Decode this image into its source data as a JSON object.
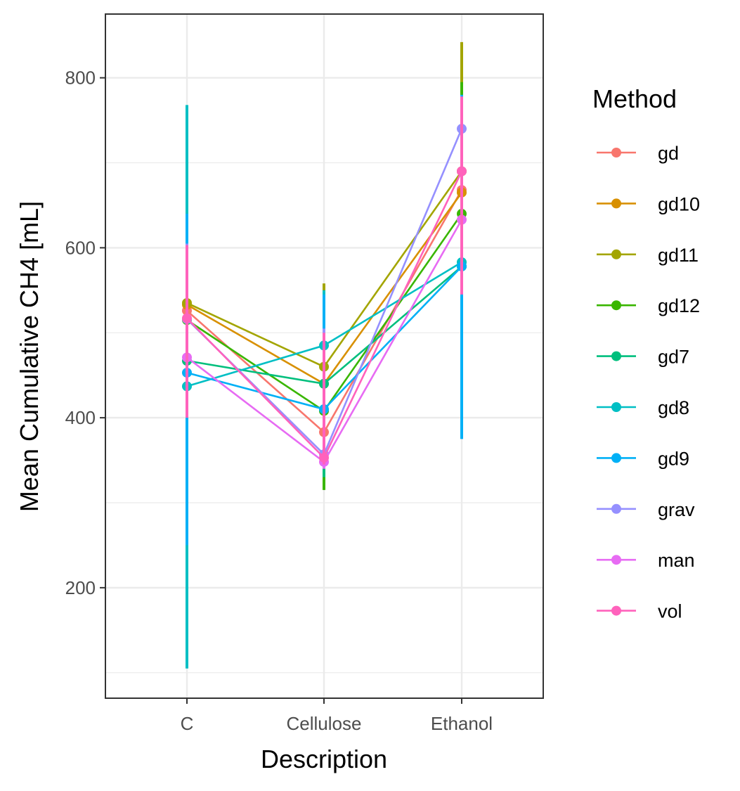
{
  "chart_data": {
    "type": "line",
    "title": "",
    "xlabel": "Description",
    "ylabel": "Mean Cumulative CH4 [mL]",
    "categories": [
      "C",
      "Cellulose",
      "Ethanol"
    ],
    "ylim": [
      70,
      875
    ],
    "yticks": [
      200,
      400,
      600,
      800
    ],
    "grid": true,
    "legend": {
      "title": "Method",
      "position": "right"
    },
    "series": [
      {
        "name": "gd",
        "color": "#F8766D",
        "values": [
          526,
          383,
          668
        ],
        "ci": [
          [
            440,
            612
          ],
          [
            330,
            508
          ],
          [
            520,
            815
          ]
        ]
      },
      {
        "name": "gd10",
        "color": "#D89000",
        "values": [
          533,
          440,
          665
        ],
        "ci": [
          [
            420,
            650
          ],
          [
            360,
            540
          ],
          [
            545,
            785
          ]
        ]
      },
      {
        "name": "gd11",
        "color": "#A3A500",
        "values": [
          535,
          460,
          690
        ],
        "ci": [
          [
            415,
            658
          ],
          [
            365,
            558
          ],
          [
            540,
            842
          ]
        ]
      },
      {
        "name": "gd12",
        "color": "#39B600",
        "values": [
          515,
          408,
          640
        ],
        "ci": [
          [
            360,
            675
          ],
          [
            315,
            540
          ],
          [
            485,
            795
          ]
        ]
      },
      {
        "name": "gd7",
        "color": "#00BF7D",
        "values": [
          467,
          440,
          578
        ],
        "ci": [
          [
            260,
            672
          ],
          [
            330,
            548
          ],
          [
            415,
            740
          ]
        ]
      },
      {
        "name": "gd8",
        "color": "#00BFC4",
        "values": [
          437,
          485,
          583
        ],
        "ci": [
          [
            105,
            768
          ],
          [
            420,
            550
          ],
          [
            430,
            780
          ]
        ]
      },
      {
        "name": "gd9",
        "color": "#00B0F6",
        "values": [
          453,
          410,
          578
        ],
        "ci": [
          [
            250,
            640
          ],
          [
            345,
            545
          ],
          [
            375,
            780
          ]
        ]
      },
      {
        "name": "grav",
        "color": "#9590FF",
        "values": [
          516,
          357,
          740
        ],
        "ci": [
          [
            420,
            605
          ],
          [
            340,
            505
          ],
          [
            550,
            775
          ]
        ]
      },
      {
        "name": "man",
        "color": "#E76BF3",
        "values": [
          471,
          348,
          633
        ],
        "ci": [
          [
            405,
            590
          ],
          [
            340,
            470
          ],
          [
            555,
            730
          ]
        ]
      },
      {
        "name": "vol",
        "color": "#FF62BC",
        "values": [
          517,
          353,
          690
        ],
        "ci": [
          [
            400,
            603
          ],
          [
            345,
            500
          ],
          [
            545,
            778
          ]
        ]
      }
    ]
  }
}
